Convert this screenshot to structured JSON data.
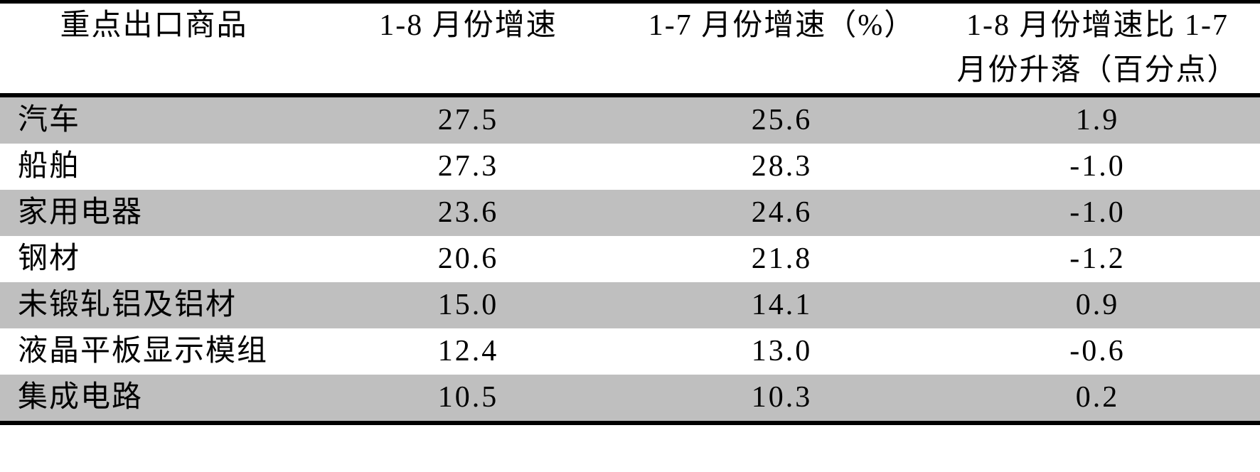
{
  "colors": {
    "shade": "#bfbfbf",
    "rule": "#000000",
    "text": "#000000",
    "background": "#ffffff"
  },
  "table": {
    "header": {
      "col1": "重点出口商品",
      "col2": "1-8 月份增速",
      "col3": "1-7 月份增速（%）",
      "col4_line1": "1-8 月份增速比 1-7",
      "col4_line2": "月份升落（百分点）"
    },
    "rows": [
      {
        "name": "汽车",
        "v1": "27.5",
        "v2": "25.6",
        "v3": "1.9"
      },
      {
        "name": "船舶",
        "v1": "27.3",
        "v2": "28.3",
        "v3": "-1.0"
      },
      {
        "name": "家用电器",
        "v1": "23.6",
        "v2": "24.6",
        "v3": "-1.0"
      },
      {
        "name": "钢材",
        "v1": "20.6",
        "v2": "21.8",
        "v3": "-1.2"
      },
      {
        "name": "未锻轧铝及铝材",
        "v1": "15.0",
        "v2": "14.1",
        "v3": "0.9"
      },
      {
        "name": "液晶平板显示模组",
        "v1": "12.4",
        "v2": "13.0",
        "v3": "-0.6"
      },
      {
        "name": "集成电路",
        "v1": "10.5",
        "v2": "10.3",
        "v3": "0.2"
      }
    ]
  },
  "chart_data": {
    "type": "table",
    "title": "",
    "columns": [
      "重点出口商品",
      "1-8 月份增速",
      "1-7 月份增速（%）",
      "1-8 月份增速比 1-7 月份升落（百分点）"
    ],
    "rows": [
      [
        "汽车",
        27.5,
        25.6,
        1.9
      ],
      [
        "船舶",
        27.3,
        28.3,
        -1.0
      ],
      [
        "家用电器",
        23.6,
        24.6,
        -1.0
      ],
      [
        "钢材",
        20.6,
        21.8,
        -1.2
      ],
      [
        "未锻轧铝及铝材",
        15.0,
        14.1,
        0.9
      ],
      [
        "液晶平板显示模组",
        12.4,
        13.0,
        -0.6
      ],
      [
        "集成电路",
        10.5,
        10.3,
        0.2
      ]
    ],
    "layout_hints": {
      "row_shading": "alternating, odd data rows shaded gray starting with first row",
      "rules": "thick black horizontal rule at top, below header, and below last row",
      "alignment": "first column left-aligned, numeric columns centered"
    }
  }
}
